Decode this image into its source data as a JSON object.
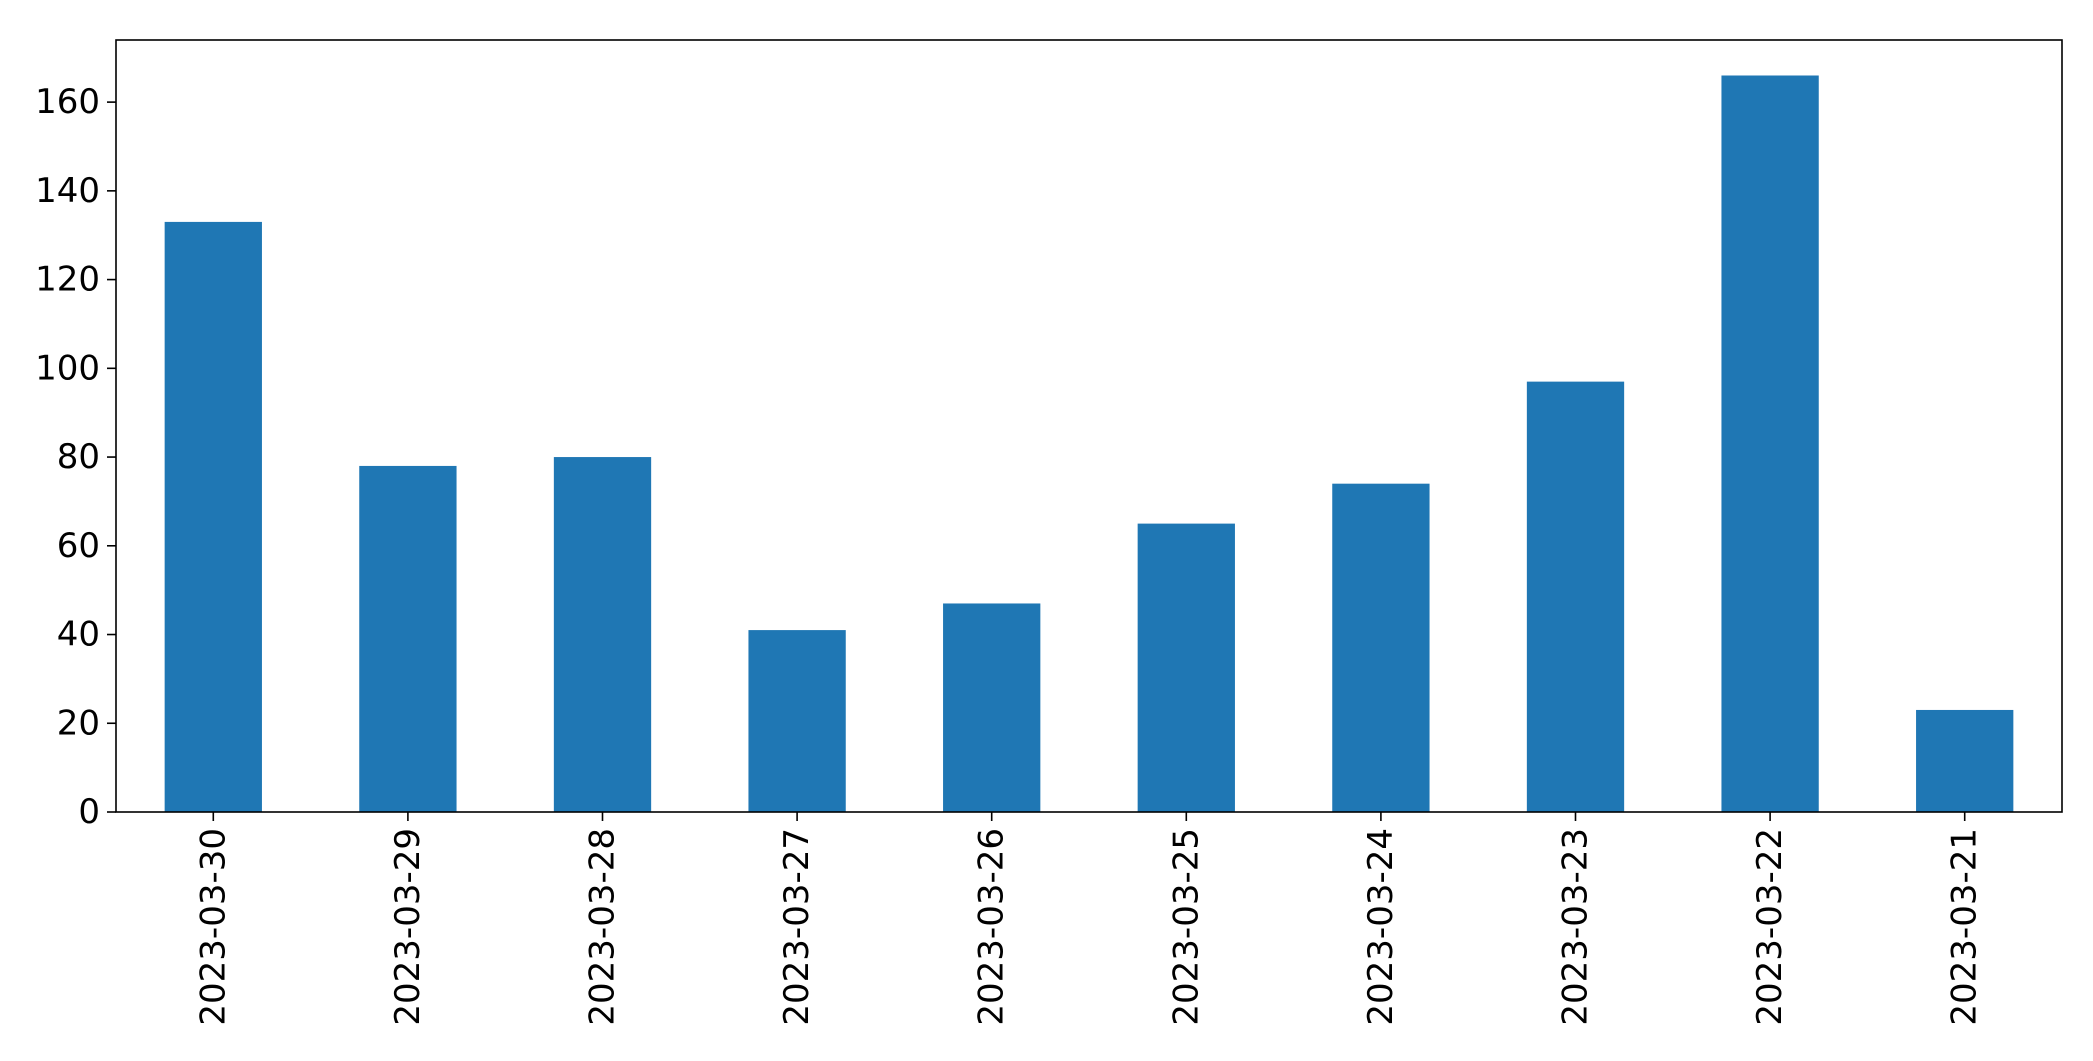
{
  "chart_data": {
    "type": "bar",
    "title": "",
    "xlabel": "",
    "ylabel": "",
    "categories": [
      "2023-03-30",
      "2023-03-29",
      "2023-03-28",
      "2023-03-27",
      "2023-03-26",
      "2023-03-25",
      "2023-03-24",
      "2023-03-23",
      "2023-03-22",
      "2023-03-21"
    ],
    "values": [
      133,
      78,
      80,
      41,
      47,
      65,
      74,
      97,
      166,
      23
    ],
    "ylim": [
      0,
      174
    ],
    "yticks": [
      "0",
      "20",
      "40",
      "60",
      "80",
      "100",
      "120",
      "140",
      "160"
    ],
    "x_tick_rotation": "vertical",
    "bar_color": "#1f77b4",
    "grid": false,
    "legend": "none"
  }
}
